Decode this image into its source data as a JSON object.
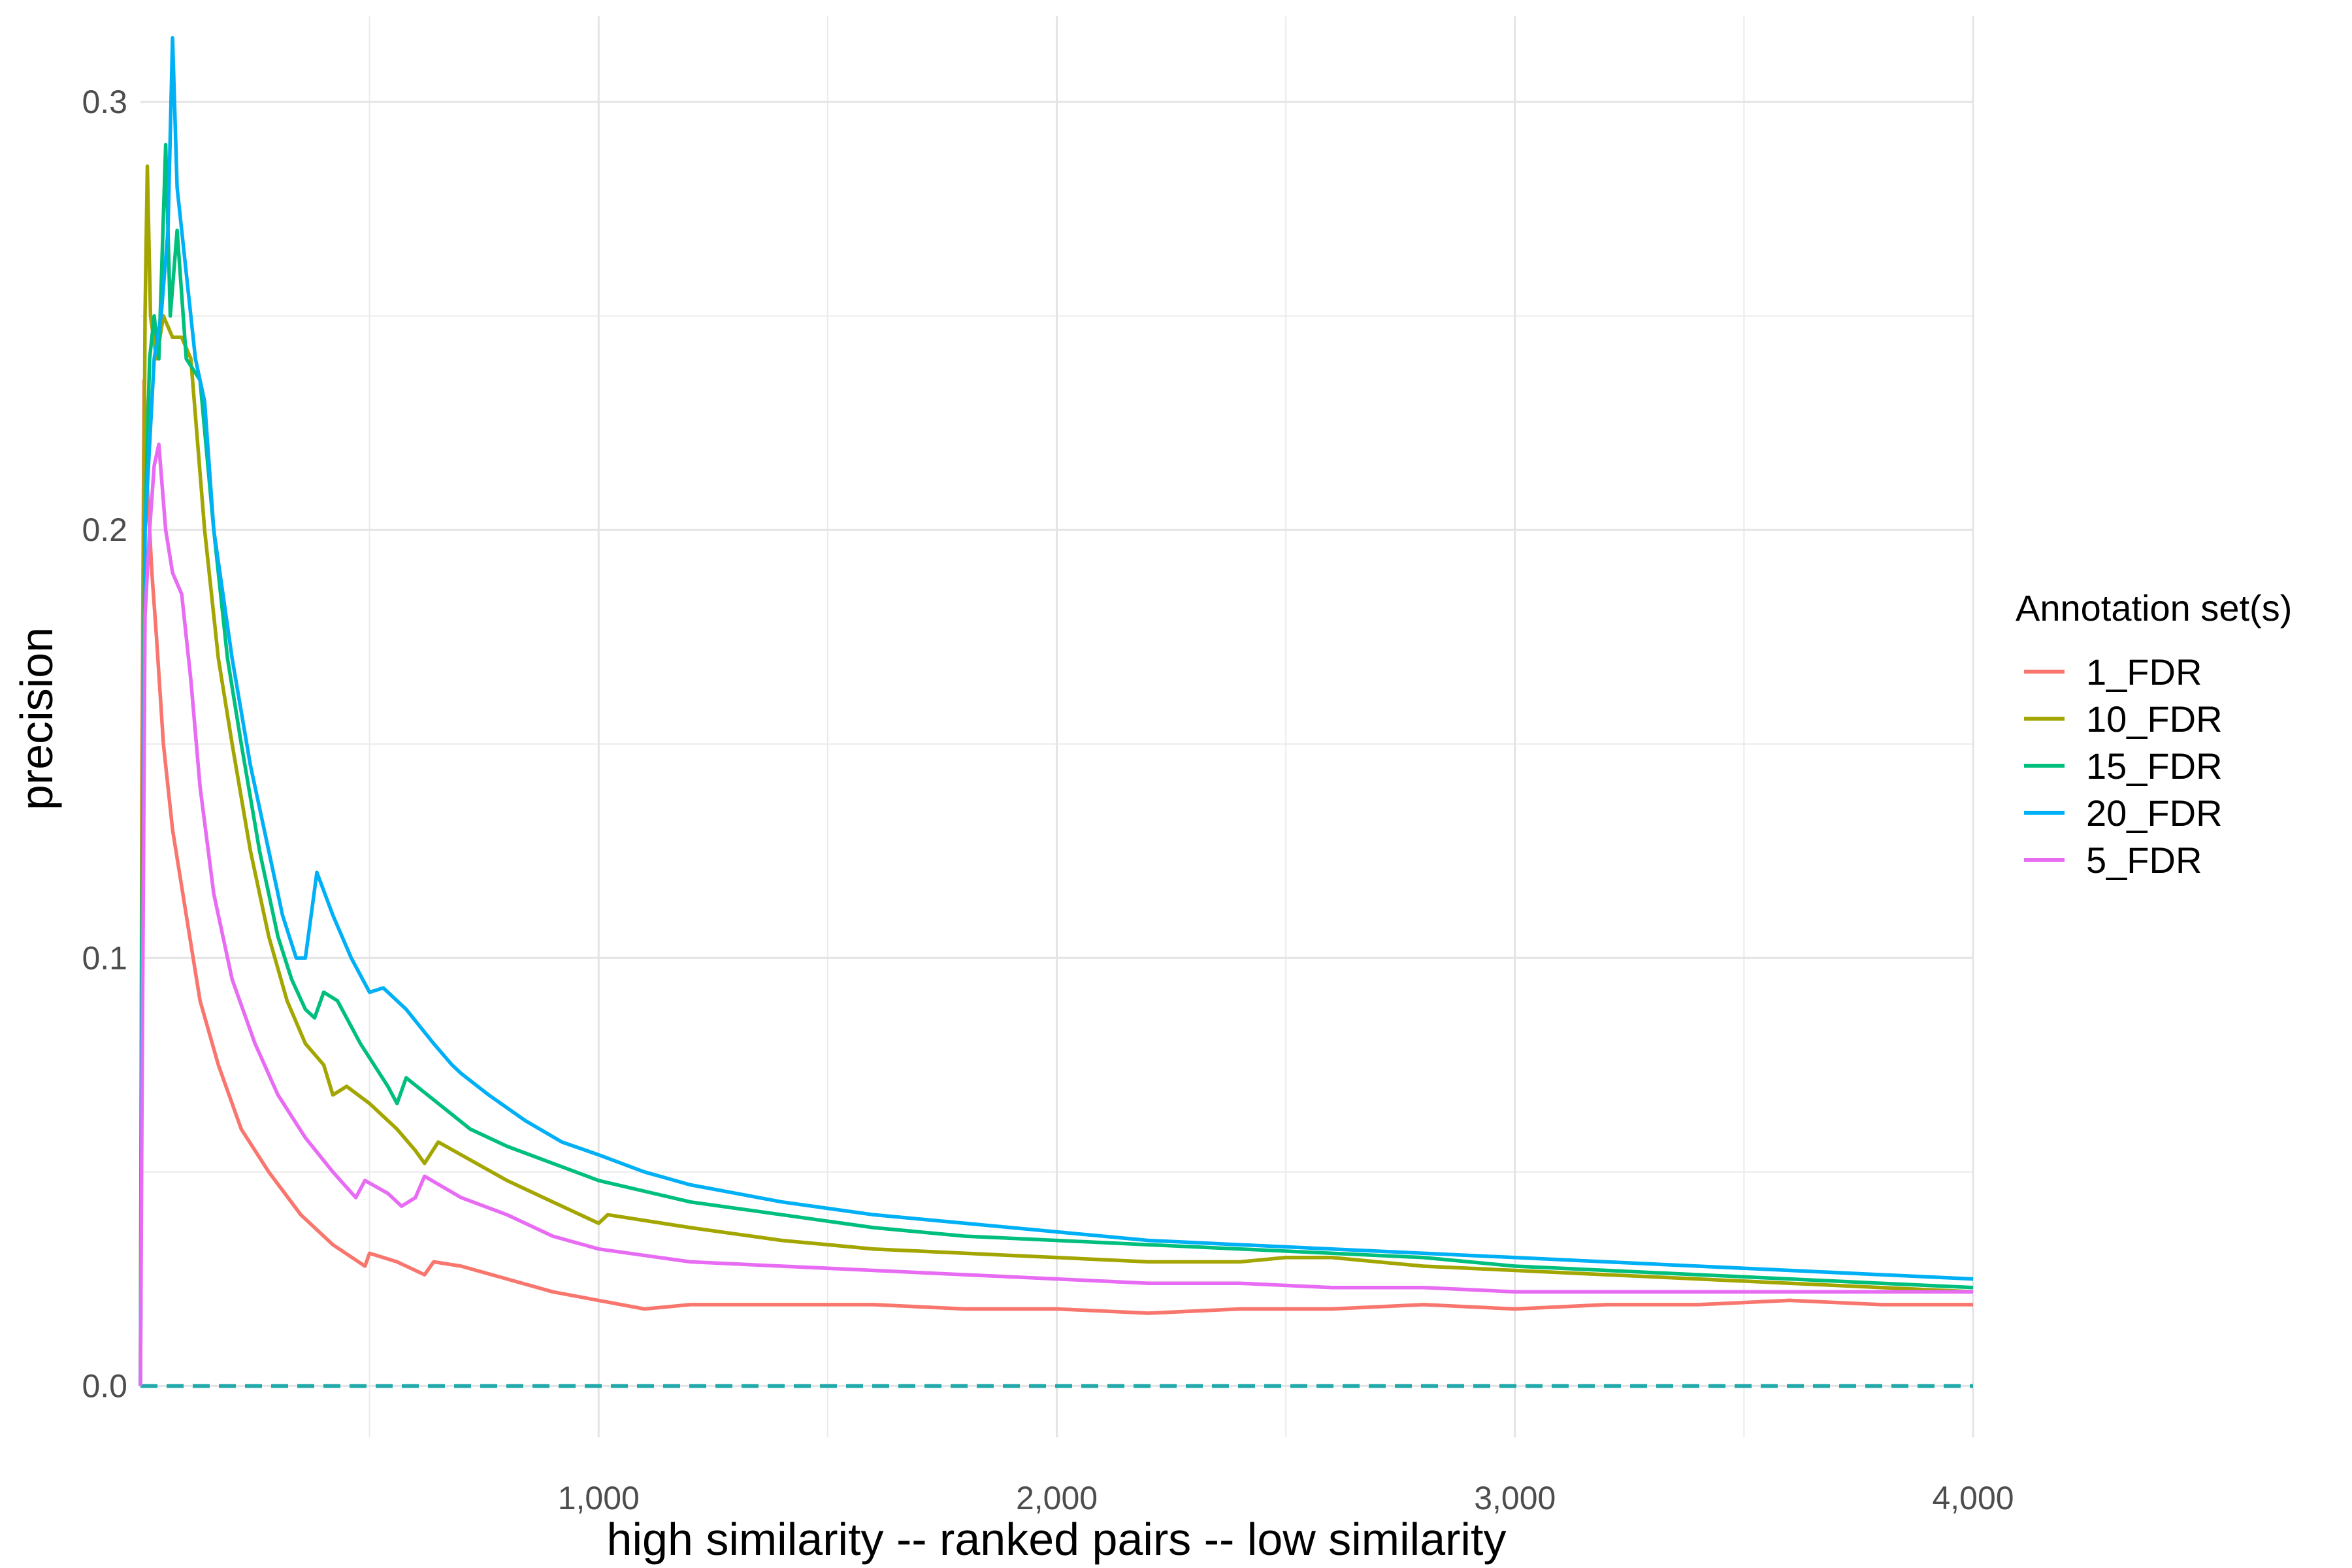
{
  "chart_data": {
    "type": "line",
    "title": "",
    "xlabel": "high similarity -- ranked pairs -- low similarity",
    "ylabel": "precision",
    "xlim": [
      0,
      4000
    ],
    "ylim": [
      -0.012,
      0.32
    ],
    "x_ticks": [
      {
        "value": 1000,
        "label": "1,000"
      },
      {
        "value": 2000,
        "label": "2,000"
      },
      {
        "value": 3000,
        "label": "3,000"
      },
      {
        "value": 4000,
        "label": "4,000"
      }
    ],
    "y_ticks": [
      {
        "value": 0.0,
        "label": "0.0"
      },
      {
        "value": 0.1,
        "label": "0.1"
      },
      {
        "value": 0.2,
        "label": "0.2"
      },
      {
        "value": 0.3,
        "label": "0.3"
      }
    ],
    "grid": true,
    "legend": {
      "title": "Annotation set(s)",
      "position": "right"
    },
    "baseline": {
      "y": 0.0,
      "style": "dashed",
      "color": "#22AAAA"
    },
    "series": [
      {
        "name": "1_FDR",
        "color": "#F8766D",
        "points": [
          [
            0,
            0
          ],
          [
            3,
            0.14
          ],
          [
            8,
            0.235
          ],
          [
            15,
            0.21
          ],
          [
            25,
            0.19
          ],
          [
            35,
            0.175
          ],
          [
            50,
            0.15
          ],
          [
            70,
            0.13
          ],
          [
            100,
            0.11
          ],
          [
            130,
            0.09
          ],
          [
            170,
            0.075
          ],
          [
            220,
            0.06
          ],
          [
            280,
            0.05
          ],
          [
            350,
            0.04
          ],
          [
            420,
            0.033
          ],
          [
            490,
            0.028
          ],
          [
            500,
            0.031
          ],
          [
            560,
            0.029
          ],
          [
            620,
            0.026
          ],
          [
            640,
            0.029
          ],
          [
            700,
            0.028
          ],
          [
            800,
            0.025
          ],
          [
            900,
            0.022
          ],
          [
            1000,
            0.02
          ],
          [
            1100,
            0.018
          ],
          [
            1200,
            0.019
          ],
          [
            1400,
            0.019
          ],
          [
            1600,
            0.019
          ],
          [
            1800,
            0.018
          ],
          [
            2000,
            0.018
          ],
          [
            2200,
            0.017
          ],
          [
            2400,
            0.018
          ],
          [
            2600,
            0.018
          ],
          [
            2800,
            0.019
          ],
          [
            3000,
            0.018
          ],
          [
            3200,
            0.019
          ],
          [
            3400,
            0.019
          ],
          [
            3600,
            0.02
          ],
          [
            3800,
            0.019
          ],
          [
            4000,
            0.019
          ]
        ]
      },
      {
        "name": "10_FDR",
        "color": "#A3A500",
        "points": [
          [
            0,
            0
          ],
          [
            3,
            0.12
          ],
          [
            10,
            0.25
          ],
          [
            15,
            0.285
          ],
          [
            22,
            0.25
          ],
          [
            35,
            0.24
          ],
          [
            50,
            0.25
          ],
          [
            70,
            0.245
          ],
          [
            90,
            0.245
          ],
          [
            110,
            0.24
          ],
          [
            140,
            0.2
          ],
          [
            170,
            0.17
          ],
          [
            200,
            0.15
          ],
          [
            240,
            0.125
          ],
          [
            280,
            0.105
          ],
          [
            320,
            0.09
          ],
          [
            360,
            0.08
          ],
          [
            400,
            0.075
          ],
          [
            420,
            0.068
          ],
          [
            450,
            0.07
          ],
          [
            500,
            0.066
          ],
          [
            560,
            0.06
          ],
          [
            600,
            0.055
          ],
          [
            620,
            0.052
          ],
          [
            650,
            0.057
          ],
          [
            700,
            0.054
          ],
          [
            800,
            0.048
          ],
          [
            900,
            0.043
          ],
          [
            1000,
            0.038
          ],
          [
            1020,
            0.04
          ],
          [
            1200,
            0.037
          ],
          [
            1400,
            0.034
          ],
          [
            1600,
            0.032
          ],
          [
            1800,
            0.031
          ],
          [
            2000,
            0.03
          ],
          [
            2200,
            0.029
          ],
          [
            2400,
            0.029
          ],
          [
            2500,
            0.03
          ],
          [
            2600,
            0.03
          ],
          [
            2800,
            0.028
          ],
          [
            3000,
            0.027
          ],
          [
            3200,
            0.026
          ],
          [
            3400,
            0.025
          ],
          [
            3600,
            0.024
          ],
          [
            3800,
            0.023
          ],
          [
            4000,
            0.022
          ]
        ]
      },
      {
        "name": "15_FDR",
        "color": "#00BF7D",
        "points": [
          [
            0,
            0
          ],
          [
            3,
            0.1
          ],
          [
            10,
            0.2
          ],
          [
            20,
            0.24
          ],
          [
            30,
            0.25
          ],
          [
            40,
            0.24
          ],
          [
            55,
            0.29
          ],
          [
            65,
            0.25
          ],
          [
            80,
            0.27
          ],
          [
            100,
            0.24
          ],
          [
            130,
            0.235
          ],
          [
            160,
            0.2
          ],
          [
            190,
            0.17
          ],
          [
            220,
            0.15
          ],
          [
            260,
            0.125
          ],
          [
            300,
            0.105
          ],
          [
            330,
            0.095
          ],
          [
            360,
            0.088
          ],
          [
            380,
            0.086
          ],
          [
            400,
            0.092
          ],
          [
            430,
            0.09
          ],
          [
            480,
            0.08
          ],
          [
            540,
            0.07
          ],
          [
            560,
            0.066
          ],
          [
            580,
            0.072
          ],
          [
            650,
            0.066
          ],
          [
            720,
            0.06
          ],
          [
            800,
            0.056
          ],
          [
            900,
            0.052
          ],
          [
            1000,
            0.048
          ],
          [
            1200,
            0.043
          ],
          [
            1400,
            0.04
          ],
          [
            1600,
            0.037
          ],
          [
            1800,
            0.035
          ],
          [
            2000,
            0.034
          ],
          [
            2200,
            0.033
          ],
          [
            2400,
            0.032
          ],
          [
            2600,
            0.031
          ],
          [
            2800,
            0.03
          ],
          [
            3000,
            0.028
          ],
          [
            3200,
            0.027
          ],
          [
            3400,
            0.026
          ],
          [
            3600,
            0.025
          ],
          [
            3800,
            0.024
          ],
          [
            4000,
            0.023
          ]
        ]
      },
      {
        "name": "20_FDR",
        "color": "#00B0F6",
        "points": [
          [
            0,
            0
          ],
          [
            3,
            0.08
          ],
          [
            10,
            0.2
          ],
          [
            20,
            0.22
          ],
          [
            30,
            0.24
          ],
          [
            45,
            0.25
          ],
          [
            60,
            0.27
          ],
          [
            70,
            0.315
          ],
          [
            80,
            0.28
          ],
          [
            100,
            0.26
          ],
          [
            120,
            0.24
          ],
          [
            140,
            0.23
          ],
          [
            160,
            0.2
          ],
          [
            200,
            0.17
          ],
          [
            240,
            0.145
          ],
          [
            280,
            0.125
          ],
          [
            310,
            0.11
          ],
          [
            340,
            0.1
          ],
          [
            360,
            0.1
          ],
          [
            370,
            0.108
          ],
          [
            385,
            0.12
          ],
          [
            420,
            0.11
          ],
          [
            460,
            0.1
          ],
          [
            500,
            0.092
          ],
          [
            530,
            0.093
          ],
          [
            580,
            0.088
          ],
          [
            640,
            0.08
          ],
          [
            680,
            0.075
          ],
          [
            700,
            0.073
          ],
          [
            760,
            0.068
          ],
          [
            840,
            0.062
          ],
          [
            920,
            0.057
          ],
          [
            1000,
            0.054
          ],
          [
            1100,
            0.05
          ],
          [
            1200,
            0.047
          ],
          [
            1300,
            0.045
          ],
          [
            1400,
            0.043
          ],
          [
            1600,
            0.04
          ],
          [
            1800,
            0.038
          ],
          [
            2000,
            0.036
          ],
          [
            2200,
            0.034
          ],
          [
            2400,
            0.033
          ],
          [
            2600,
            0.032
          ],
          [
            2800,
            0.031
          ],
          [
            3000,
            0.03
          ],
          [
            3200,
            0.029
          ],
          [
            3400,
            0.028
          ],
          [
            3600,
            0.027
          ],
          [
            3800,
            0.026
          ],
          [
            4000,
            0.025
          ]
        ]
      },
      {
        "name": "5_FDR",
        "color": "#E76BF3",
        "points": [
          [
            0,
            0
          ],
          [
            3,
            0.06
          ],
          [
            10,
            0.18
          ],
          [
            20,
            0.2
          ],
          [
            30,
            0.215
          ],
          [
            40,
            0.22
          ],
          [
            55,
            0.2
          ],
          [
            70,
            0.19
          ],
          [
            90,
            0.185
          ],
          [
            110,
            0.165
          ],
          [
            130,
            0.14
          ],
          [
            160,
            0.115
          ],
          [
            200,
            0.095
          ],
          [
            250,
            0.08
          ],
          [
            300,
            0.068
          ],
          [
            360,
            0.058
          ],
          [
            420,
            0.05
          ],
          [
            470,
            0.044
          ],
          [
            490,
            0.048
          ],
          [
            540,
            0.045
          ],
          [
            570,
            0.042
          ],
          [
            600,
            0.044
          ],
          [
            620,
            0.049
          ],
          [
            700,
            0.044
          ],
          [
            800,
            0.04
          ],
          [
            900,
            0.035
          ],
          [
            1000,
            0.032
          ],
          [
            1200,
            0.029
          ],
          [
            1400,
            0.028
          ],
          [
            1600,
            0.027
          ],
          [
            1800,
            0.026
          ],
          [
            2000,
            0.025
          ],
          [
            2200,
            0.024
          ],
          [
            2400,
            0.024
          ],
          [
            2600,
            0.023
          ],
          [
            2800,
            0.023
          ],
          [
            3000,
            0.022
          ],
          [
            3200,
            0.022
          ],
          [
            3400,
            0.022
          ],
          [
            3600,
            0.022
          ],
          [
            3800,
            0.022
          ],
          [
            4000,
            0.022
          ]
        ]
      }
    ]
  }
}
